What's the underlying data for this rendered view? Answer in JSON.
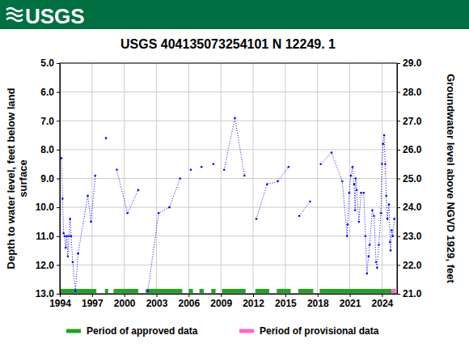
{
  "chart_data": {
    "type": "line",
    "title": "USGS 404135073254101 N 12249. 1",
    "annotations": [
      "USGS"
    ],
    "y_label": "Depth to water level, feet below land surface",
    "y2_label": "Groundwater level above NGVD 1929, feet",
    "xlim": [
      1994,
      2025.4
    ],
    "xticks": [
      1994,
      1997,
      2000,
      2003,
      2006,
      2009,
      2012,
      2015,
      2018,
      2021,
      2024
    ],
    "ylim": [
      5,
      13
    ],
    "yticks": [
      {
        "value": 5,
        "label": "5.0"
      },
      {
        "value": 6,
        "label": "6.0"
      },
      {
        "value": 7,
        "label": "7.0"
      },
      {
        "value": 8,
        "label": "8.0"
      },
      {
        "value": 9,
        "label": "9.0"
      },
      {
        "value": 10,
        "label": "10.0"
      },
      {
        "value": 11,
        "label": "11.0"
      },
      {
        "value": 12,
        "label": "12.0"
      },
      {
        "value": 13,
        "label": "13.0"
      }
    ],
    "y2lim": [
      29,
      21
    ],
    "y2ticks": [
      {
        "value": 29,
        "label": "29.0"
      },
      {
        "value": 28,
        "label": "28.0"
      },
      {
        "value": 27,
        "label": "27.0"
      },
      {
        "value": 26,
        "label": "26.0"
      },
      {
        "value": 25,
        "label": "25.0"
      },
      {
        "value": 24,
        "label": "24.0"
      },
      {
        "value": 23,
        "label": "23.0"
      },
      {
        "value": 22,
        "label": "22.0"
      },
      {
        "value": 21,
        "label": "21.0"
      }
    ],
    "grid": true,
    "legend": "bottom",
    "x": [
      1994.15,
      1994.25,
      1994.35,
      1994.45,
      1994.55,
      1994.65,
      1994.75,
      1994.85,
      1994.95,
      1995.05,
      1995.2,
      1995.45,
      1995.7,
      1996.6,
      1996.9,
      1997.3,
      1997.8,
      1998.3,
      1998.8,
      1999.3,
      2000.3,
      2001.3,
      2001.8,
      2002.2,
      2003.2,
      2004.2,
      2005.2,
      2005.7,
      2006.2,
      2006.7,
      2007.2,
      2007.7,
      2008.3,
      2008.8,
      2009.3,
      2010.3,
      2011.2,
      2011.8,
      2012.3,
      2013.3,
      2014.3,
      2015.3,
      2015.8,
      2016.3,
      2017.3,
      2017.8,
      2018.3,
      2019.3,
      2020.3,
      2020.75,
      2020.8,
      2020.95,
      2021.1,
      2021.25,
      2021.4,
      2021.5,
      2021.55,
      2021.65,
      2021.85,
      2022.05,
      2022.3,
      2022.45,
      2022.6,
      2022.75,
      2022.85,
      2023.1,
      2023.25,
      2023.45,
      2023.55,
      2023.7,
      2023.9,
      2024.0,
      2024.1,
      2024.2,
      2024.3,
      2024.4,
      2024.5,
      2024.65,
      2024.75,
      2024.8,
      2024.9,
      2025.0,
      2025.15
    ],
    "series": [
      {
        "color": "#0000ff",
        "marker": "circle",
        "line_style": "dotted",
        "values": [
          8.3,
          9.7,
          10.9,
          11.0,
          11.4,
          11.0,
          11.7,
          11.0,
          10.4,
          11.0,
          11.9,
          12.9,
          11.6,
          9.6,
          10.5,
          8.9,
          null,
          7.6,
          null,
          8.7,
          10.2,
          9.4,
          null,
          12.9,
          10.2,
          10.0,
          9.0,
          null,
          8.7,
          null,
          8.6,
          null,
          8.5,
          null,
          8.7,
          6.9,
          8.9,
          null,
          10.4,
          9.2,
          9.1,
          8.6,
          null,
          10.3,
          9.8,
          null,
          8.5,
          8.1,
          9.1,
          11.0,
          10.6,
          9.5,
          8.9,
          8.6,
          9.2,
          10.1,
          9.0,
          9.4,
          10.5,
          9.5,
          9.5,
          11.0,
          12.3,
          11.7,
          11.3,
          10.1,
          10.3,
          11.9,
          12.1,
          11.3,
          10.2,
          8.5,
          7.8,
          7.5,
          8.5,
          9.6,
          10.4,
          9.9,
          11.2,
          11.5,
          10.8,
          11.0,
          10.4
        ]
      }
    ],
    "periods": [
      {
        "name": "Period of approved data",
        "color": "#22a322",
        "ranges": [
          [
            1994.0,
            1997.4
          ],
          [
            1998.2,
            1998.5
          ],
          [
            1999.0,
            2001.3
          ],
          [
            2002.0,
            2005.4
          ],
          [
            2006.0,
            2006.4
          ],
          [
            2007.0,
            2007.4
          ],
          [
            2008.1,
            2008.5
          ],
          [
            2009.1,
            2011.3
          ],
          [
            2012.2,
            2013.5
          ],
          [
            2014.2,
            2015.5
          ],
          [
            2016.2,
            2017.6
          ],
          [
            2018.2,
            2024.9
          ]
        ]
      },
      {
        "name": "Period of provisional data",
        "color": "#ff66cc",
        "ranges": [
          [
            2024.9,
            2025.3
          ]
        ]
      }
    ]
  }
}
